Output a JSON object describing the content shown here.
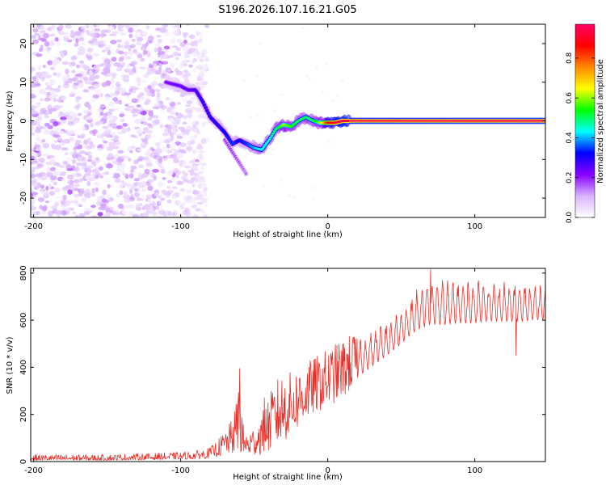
{
  "title": "S196.2026.107.16.21.G05",
  "chart_data": [
    {
      "type": "heatmap",
      "name": "spectrogram",
      "xlabel": "Height of straight line (km)",
      "ylabel": "Frequency (Hz)",
      "xlim": [
        -202,
        148
      ],
      "ylim": [
        -25,
        25
      ],
      "xticks": [
        -200,
        -100,
        0,
        100
      ],
      "xtick_labels": [
        "-200",
        "-100",
        "0",
        "100"
      ],
      "yticks": [
        -20,
        -10,
        0,
        10,
        20
      ],
      "ytick_labels": [
        "-20",
        "-10",
        "0",
        "10",
        "20"
      ],
      "colorbar": {
        "label": "Normalized spectral amplitude",
        "range": [
          0,
          0.97
        ],
        "ticks": [
          0.0,
          0.2,
          0.4,
          0.6,
          0.8
        ],
        "tick_labels": [
          "0.0",
          "0.2",
          "0.4",
          "0.6",
          "0.8"
        ],
        "colors": [
          "#ffffff",
          "#d9b3ff",
          "#8800ff",
          "#0000ff",
          "#00ffff",
          "#00ff00",
          "#ffff00",
          "#ff8800",
          "#ff0000",
          "#ff0066"
        ]
      },
      "ridge": {
        "x": [
          -110,
          -100,
          -95,
          -90,
          -85,
          -80,
          -75,
          -70,
          -65,
          -60,
          -55,
          -50,
          -45,
          -40,
          -35,
          -30,
          -25,
          -20,
          -15,
          -10,
          -5,
          0,
          5,
          10,
          148
        ],
        "y": [
          10,
          9,
          8,
          8,
          5,
          1,
          -1,
          -3,
          -6,
          -5,
          -6,
          -7,
          -7.5,
          -5,
          -2,
          -1,
          -1.5,
          0,
          1,
          0,
          -0.5,
          -0.5,
          -0.5,
          0,
          0
        ],
        "amplitude": [
          0.22,
          0.25,
          0.25,
          0.28,
          0.3,
          0.3,
          0.3,
          0.32,
          0.35,
          0.32,
          0.35,
          0.4,
          0.45,
          0.45,
          0.5,
          0.6,
          0.55,
          0.5,
          0.5,
          0.5,
          0.6,
          0.85,
          0.9,
          0.95,
          0.97
        ]
      },
      "branch": {
        "x": [
          -70,
          -65,
          -60,
          -55
        ],
        "y": [
          -5,
          -8,
          -11,
          -14
        ],
        "amplitude": [
          0.2,
          0.2,
          0.18,
          0.15
        ]
      }
    },
    {
      "type": "line",
      "name": "snr",
      "xlabel": "Height of straight line (km)",
      "ylabel": "SNR (10 * v/v)",
      "color": "#e8312b",
      "xlim": [
        -202,
        148
      ],
      "ylim": [
        0,
        820
      ],
      "xticks": [
        -200,
        -100,
        0,
        100
      ],
      "xtick_labels": [
        "-200",
        "-100",
        "0",
        "100"
      ],
      "yticks": [
        0,
        200,
        400,
        600,
        800
      ],
      "ytick_labels": [
        "0",
        "200",
        "400",
        "600",
        "800"
      ],
      "envelope": {
        "x": [
          -202,
          -150,
          -100,
          -85,
          -80,
          -75,
          -70,
          -65,
          -62,
          -60,
          -58,
          -55,
          -50,
          -45,
          -40,
          -35,
          -30,
          -25,
          -20,
          -15,
          -10,
          0,
          10,
          20,
          30,
          40,
          50,
          55,
          60,
          65,
          70,
          80,
          90,
          100,
          110,
          120,
          130,
          140,
          148
        ],
        "min": [
          5,
          5,
          10,
          10,
          15,
          20,
          25,
          30,
          40,
          30,
          25,
          20,
          25,
          30,
          40,
          60,
          80,
          110,
          140,
          170,
          200,
          230,
          270,
          320,
          370,
          420,
          470,
          500,
          520,
          530,
          540,
          540,
          550,
          550,
          560,
          560,
          560,
          570,
          570
        ],
        "max": [
          30,
          30,
          40,
          50,
          60,
          90,
          130,
          180,
          260,
          400,
          170,
          120,
          150,
          200,
          280,
          350,
          380,
          380,
          400,
          420,
          440,
          480,
          520,
          560,
          590,
          620,
          660,
          700,
          760,
          790,
          820,
          810,
          800,
          800,
          800,
          790,
          780,
          780,
          780
        ]
      },
      "spikes": [
        {
          "x": -60,
          "y": 395
        },
        {
          "x": -43,
          "y": 270
        },
        {
          "x": 70,
          "y": 815
        },
        {
          "x": 128,
          "y": 450
        }
      ]
    }
  ]
}
